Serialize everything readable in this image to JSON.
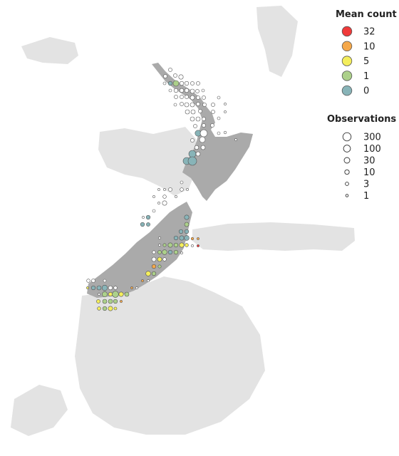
{
  "colors": {
    "background": "#ffffff",
    "land_light": "#e3e3e3",
    "land_highlight": "#aaaaaa",
    "empty_circle_fill": "#ffffff",
    "circle_stroke": "#555555"
  },
  "legend_mean": {
    "title": "Mean count",
    "items": [
      {
        "label": "32",
        "color": "#f03a3a"
      },
      {
        "label": "10",
        "color": "#f5a84a"
      },
      {
        "label": "5",
        "color": "#f4ee5c"
      },
      {
        "label": "1",
        "color": "#acd08a"
      },
      {
        "label": "0",
        "color": "#88b4b8"
      }
    ]
  },
  "legend_obs": {
    "title": "Observations",
    "items": [
      {
        "label": "300",
        "value": 300
      },
      {
        "label": "100",
        "value": 100
      },
      {
        "label": "30",
        "value": 30
      },
      {
        "label": "10",
        "value": 10
      },
      {
        "label": "3",
        "value": 3
      },
      {
        "label": "1",
        "value": 1
      }
    ]
  }
}
